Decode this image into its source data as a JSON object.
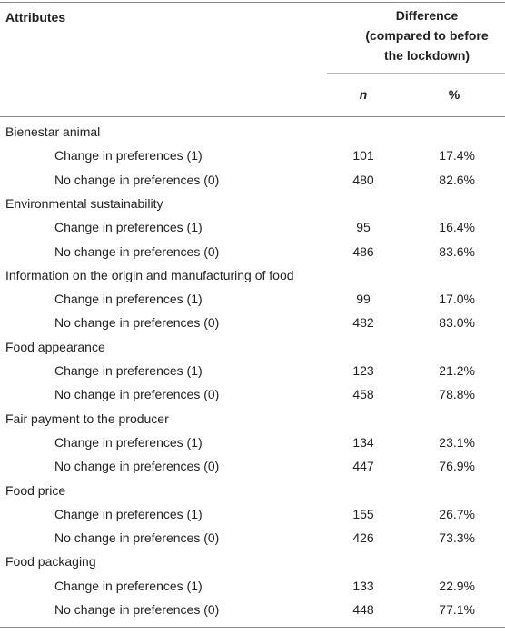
{
  "table": {
    "header": {
      "attributes": "Attributes",
      "difference": [
        "Difference",
        "(compared to before",
        "the lockdown)"
      ],
      "n": "n",
      "percent": "%"
    },
    "groups": [
      {
        "name": "Bienestar animal",
        "rows": [
          {
            "label": "Change in preferences (1)",
            "n": "101",
            "percent": "17.4%"
          },
          {
            "label": "No change in preferences (0)",
            "n": "480",
            "percent": "82.6%"
          }
        ]
      },
      {
        "name": "Environmental sustainability",
        "rows": [
          {
            "label": "Change in preferences (1)",
            "n": "95",
            "percent": "16.4%"
          },
          {
            "label": "No change in preferences (0)",
            "n": "486",
            "percent": "83.6%"
          }
        ]
      },
      {
        "name": "Information on the origin and manufacturing of food",
        "rows": [
          {
            "label": "Change in preferences (1)",
            "n": "99",
            "percent": "17.0%"
          },
          {
            "label": "No change in preferences (0)",
            "n": "482",
            "percent": "83.0%"
          }
        ]
      },
      {
        "name": "Food appearance",
        "rows": [
          {
            "label": "Change in preferences (1)",
            "n": "123",
            "percent": "21.2%"
          },
          {
            "label": "No change in preferences (0)",
            "n": "458",
            "percent": "78.8%"
          }
        ]
      },
      {
        "name": "Fair payment to the producer",
        "rows": [
          {
            "label": "Change in preferences (1)",
            "n": "134",
            "percent": "23.1%"
          },
          {
            "label": "No change in preferences (0)",
            "n": "447",
            "percent": "76.9%"
          }
        ]
      },
      {
        "name": "Food price",
        "rows": [
          {
            "label": "Change in preferences (1)",
            "n": "155",
            "percent": "26.7%"
          },
          {
            "label": "No change in preferences (0)",
            "n": "426",
            "percent": "73.3%"
          }
        ]
      },
      {
        "name": "Food packaging",
        "rows": [
          {
            "label": "Change in preferences (1)",
            "n": "133",
            "percent": "22.9%"
          },
          {
            "label": "No change in preferences (0)",
            "n": "448",
            "percent": "77.1%"
          }
        ]
      }
    ]
  }
}
